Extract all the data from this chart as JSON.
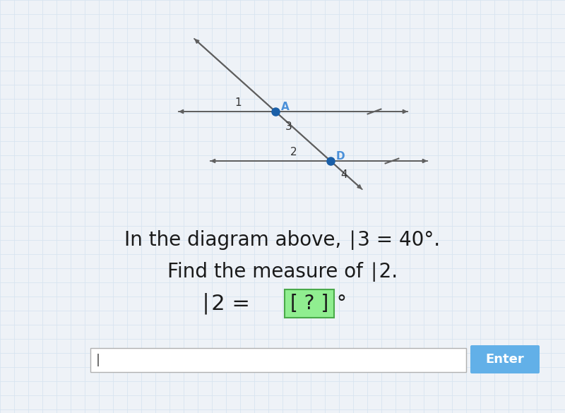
{
  "bg_color": "#eef2f7",
  "grid_color": "#d8e4f0",
  "line_color": "#606060",
  "dot_color": "#1a5fa8",
  "label_color_gray": "#333333",
  "label_color_blue": "#4a90d9",
  "answer_box_color": "#90ee90",
  "answer_box_edge": "#4aaa4a",
  "input_box_color": "#ffffff",
  "enter_button_color": "#62b0e8",
  "enter_button_text": "Enter",
  "label_1": "1",
  "label_3": "3",
  "label_2": "2",
  "label_4": "4",
  "label_A": "A",
  "label_D": "D",
  "tick_color": "#606060",
  "text_line1": "In the diagram above, ∣3 = 40°.",
  "text_line2": "Find the measure of ∣2.",
  "text_line3_pre": "∣2 = ",
  "text_line3_bracket": "[ ? ]",
  "text_line3_post": "°"
}
